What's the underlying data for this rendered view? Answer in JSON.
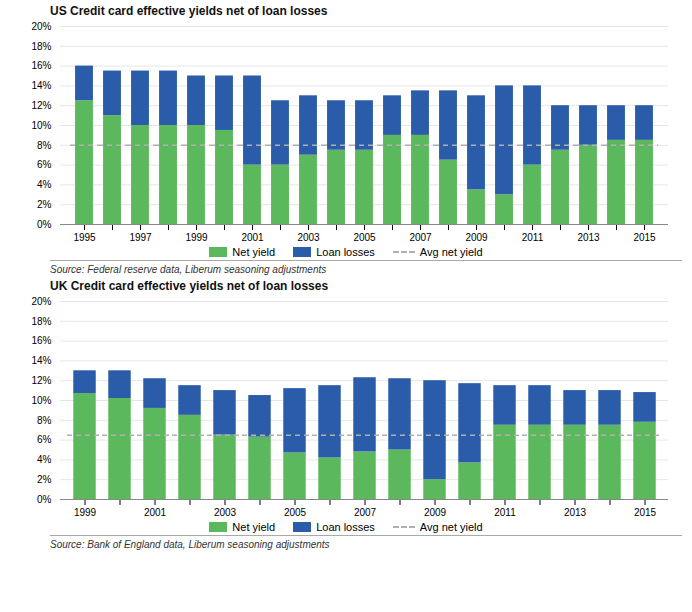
{
  "chart_data": [
    {
      "type": "bar",
      "title": "US Credit card effective yields net of loan losses",
      "caption": "Source: Federal reserve data, Liberum seasoning adjustments",
      "categories": [
        "1995",
        null,
        "1997",
        null,
        "1999",
        null,
        "2001",
        null,
        "2003",
        null,
        "2005",
        null,
        "2007",
        null,
        "2009",
        null,
        "2011",
        null,
        "2013",
        null,
        "2015"
      ],
      "series": [
        {
          "name": "Net yield",
          "color": "#5cb85c",
          "values": [
            12.5,
            11.0,
            10.0,
            10.0,
            10.0,
            9.5,
            6.0,
            6.0,
            7.0,
            7.5,
            7.5,
            9.0,
            9.0,
            6.5,
            3.5,
            3.0,
            6.0,
            7.5,
            8.0,
            8.5,
            8.5
          ]
        },
        {
          "name": "Loan losses",
          "color": "#2a5caa",
          "values": [
            3.5,
            4.5,
            5.5,
            5.5,
            5.0,
            5.5,
            9.0,
            6.5,
            6.0,
            5.0,
            5.0,
            4.0,
            4.5,
            7.0,
            9.5,
            11.0,
            8.0,
            4.5,
            4.0,
            3.5,
            3.5
          ]
        },
        {
          "name": "Avg net yield",
          "type": "line",
          "line_style": "dashed",
          "color": "#b0b0b0",
          "values": [
            8.0,
            8.0,
            8.0,
            8.0,
            8.0,
            8.0,
            8.0,
            8.0,
            8.0,
            8.0,
            8.0,
            8.0,
            8.0,
            8.0,
            8.0,
            8.0,
            8.0,
            8.0,
            8.0,
            8.0,
            8.0
          ]
        }
      ],
      "stacked": true,
      "ylim": [
        0,
        20
      ],
      "yticks": [
        {
          "value": 0,
          "label": "0%"
        },
        {
          "value": 2,
          "label": "2%"
        },
        {
          "value": 4,
          "label": "4%"
        },
        {
          "value": 6,
          "label": "6%"
        },
        {
          "value": 8,
          "label": "8%"
        },
        {
          "value": 10,
          "label": "10%"
        },
        {
          "value": 12,
          "label": "12%"
        },
        {
          "value": 14,
          "label": "14%"
        },
        {
          "value": 16,
          "label": "16%"
        },
        {
          "value": 18,
          "label": "18%"
        },
        {
          "value": 20,
          "label": "20%"
        }
      ],
      "grid": true,
      "legend": "bottom"
    },
    {
      "type": "bar",
      "title": "UK Credit card effective yields net of loan losses",
      "caption": "Source: Bank of England data, Liberum seasoning adjustments",
      "categories": [
        "1999",
        null,
        "2001",
        null,
        "2003",
        null,
        "2005",
        null,
        "2007",
        null,
        "2009",
        null,
        "2011",
        null,
        "2013",
        null,
        "2015"
      ],
      "series": [
        {
          "name": "Net yield",
          "color": "#5cb85c",
          "values": [
            10.7,
            10.2,
            9.2,
            8.5,
            6.5,
            6.3,
            4.7,
            4.2,
            4.8,
            5.0,
            2.0,
            3.7,
            7.5,
            7.5,
            7.5,
            7.5,
            7.8
          ]
        },
        {
          "name": "Loan losses",
          "color": "#2a5caa",
          "values": [
            2.3,
            2.8,
            3.0,
            3.0,
            4.5,
            4.2,
            6.5,
            7.3,
            7.5,
            7.2,
            10.0,
            8.0,
            4.0,
            4.0,
            3.5,
            3.5,
            3.0
          ]
        },
        {
          "name": "Avg net yield",
          "type": "line",
          "line_style": "dashed",
          "color": "#b0b0b0",
          "values": [
            6.5,
            6.5,
            6.5,
            6.5,
            6.5,
            6.5,
            6.5,
            6.5,
            6.5,
            6.5,
            6.5,
            6.5,
            6.5,
            6.5,
            6.5,
            6.5,
            6.5
          ]
        }
      ],
      "stacked": true,
      "ylim": [
        0,
        20
      ],
      "yticks": [
        {
          "value": 0,
          "label": "0%"
        },
        {
          "value": 2,
          "label": "2%"
        },
        {
          "value": 4,
          "label": "4%"
        },
        {
          "value": 6,
          "label": "6%"
        },
        {
          "value": 8,
          "label": "8%"
        },
        {
          "value": 10,
          "label": "10%"
        },
        {
          "value": 12,
          "label": "12%"
        },
        {
          "value": 14,
          "label": "14%"
        },
        {
          "value": 16,
          "label": "16%"
        },
        {
          "value": 18,
          "label": "18%"
        },
        {
          "value": 20,
          "label": "20%"
        }
      ],
      "grid": true,
      "legend": "bottom"
    }
  ]
}
